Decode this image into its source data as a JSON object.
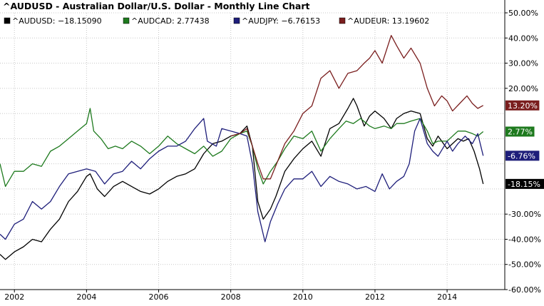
{
  "chart_data": {
    "type": "line",
    "title": "^AUDUSD - Australian Dollar/U.S. Dollar - Monthly Line Chart",
    "xlabel": "",
    "ylabel": "",
    "xlim": [
      2001.6,
      2015.6
    ],
    "ylim": [
      -60,
      50
    ],
    "x_ticks": [
      {
        "x": 2002,
        "label": "2002"
      },
      {
        "x": 2004,
        "label": "2004"
      },
      {
        "x": 2006,
        "label": "2006"
      },
      {
        "x": 2008,
        "label": "2008"
      },
      {
        "x": 2010,
        "label": "2010"
      },
      {
        "x": 2012,
        "label": "2012"
      },
      {
        "x": 2014,
        "label": "2014"
      }
    ],
    "y_ticks": [
      {
        "y": 50,
        "label": "50.00%"
      },
      {
        "y": 40,
        "label": "40.00%"
      },
      {
        "y": 30,
        "label": "30.00%"
      },
      {
        "y": 20,
        "label": "20.00%"
      },
      {
        "y": -30,
        "label": "-30.00%"
      },
      {
        "y": -40,
        "label": "-40.00%"
      },
      {
        "y": -50,
        "label": "-50.00%"
      },
      {
        "y": -60,
        "label": "-60.00%"
      }
    ],
    "grid": true,
    "legend_position": "top",
    "series": [
      {
        "name": "^AUDUSD",
        "legend_label": "^AUDUSD: −18.15090",
        "end_label": "-18.15%",
        "color": "#000000",
        "points": [
          [
            2001.6,
            -46
          ],
          [
            2001.75,
            -48
          ],
          [
            2002.0,
            -45
          ],
          [
            2002.25,
            -43
          ],
          [
            2002.5,
            -40
          ],
          [
            2002.75,
            -41
          ],
          [
            2003.0,
            -36
          ],
          [
            2003.25,
            -32
          ],
          [
            2003.5,
            -25
          ],
          [
            2003.75,
            -21
          ],
          [
            2004.0,
            -15
          ],
          [
            2004.1,
            -14
          ],
          [
            2004.3,
            -20
          ],
          [
            2004.5,
            -23
          ],
          [
            2004.75,
            -19
          ],
          [
            2005.0,
            -17
          ],
          [
            2005.25,
            -19
          ],
          [
            2005.5,
            -21
          ],
          [
            2005.75,
            -22
          ],
          [
            2006.0,
            -20
          ],
          [
            2006.25,
            -17
          ],
          [
            2006.5,
            -15
          ],
          [
            2006.75,
            -14
          ],
          [
            2007.0,
            -12
          ],
          [
            2007.25,
            -6
          ],
          [
            2007.5,
            -2
          ],
          [
            2007.75,
            -1
          ],
          [
            2008.0,
            1
          ],
          [
            2008.25,
            2
          ],
          [
            2008.45,
            5
          ],
          [
            2008.6,
            -3
          ],
          [
            2008.75,
            -25
          ],
          [
            2008.9,
            -32
          ],
          [
            2009.1,
            -28
          ],
          [
            2009.25,
            -23
          ],
          [
            2009.5,
            -13
          ],
          [
            2009.75,
            -8
          ],
          [
            2010.0,
            -4
          ],
          [
            2010.25,
            -1
          ],
          [
            2010.5,
            -7
          ],
          [
            2010.75,
            4
          ],
          [
            2011.0,
            6
          ],
          [
            2011.25,
            12
          ],
          [
            2011.4,
            16
          ],
          [
            2011.5,
            13
          ],
          [
            2011.7,
            5
          ],
          [
            2011.85,
            9
          ],
          [
            2012.0,
            11
          ],
          [
            2012.25,
            8
          ],
          [
            2012.45,
            4
          ],
          [
            2012.6,
            8
          ],
          [
            2012.8,
            10
          ],
          [
            2013.0,
            11
          ],
          [
            2013.25,
            10
          ],
          [
            2013.45,
            0
          ],
          [
            2013.6,
            -3
          ],
          [
            2013.75,
            1
          ],
          [
            2014.0,
            -4
          ],
          [
            2014.15,
            -2
          ],
          [
            2014.3,
            0
          ],
          [
            2014.45,
            -1
          ],
          [
            2014.6,
            0
          ],
          [
            2014.75,
            -5
          ],
          [
            2014.9,
            -12
          ],
          [
            2015.0,
            -18
          ]
        ]
      },
      {
        "name": "^AUDCAD",
        "legend_label": "^AUDCAD: 2.77438",
        "end_label": "2.77%",
        "color": "#1e7a1e",
        "points": [
          [
            2001.6,
            -10
          ],
          [
            2001.75,
            -19
          ],
          [
            2002.0,
            -13
          ],
          [
            2002.25,
            -13
          ],
          [
            2002.5,
            -10
          ],
          [
            2002.75,
            -11
          ],
          [
            2003.0,
            -5
          ],
          [
            2003.25,
            -3
          ],
          [
            2003.5,
            0
          ],
          [
            2003.75,
            3
          ],
          [
            2004.0,
            6
          ],
          [
            2004.1,
            12
          ],
          [
            2004.2,
            3
          ],
          [
            2004.4,
            0
          ],
          [
            2004.6,
            -4
          ],
          [
            2004.8,
            -3
          ],
          [
            2005.0,
            -4
          ],
          [
            2005.25,
            -1
          ],
          [
            2005.5,
            -3
          ],
          [
            2005.75,
            -6
          ],
          [
            2006.0,
            -3
          ],
          [
            2006.25,
            1
          ],
          [
            2006.5,
            -2
          ],
          [
            2006.75,
            -4
          ],
          [
            2007.0,
            -6
          ],
          [
            2007.25,
            -3
          ],
          [
            2007.5,
            -7
          ],
          [
            2007.75,
            -5
          ],
          [
            2008.0,
            0
          ],
          [
            2008.25,
            2
          ],
          [
            2008.45,
            3
          ],
          [
            2008.6,
            -3
          ],
          [
            2008.75,
            -12
          ],
          [
            2008.9,
            -18
          ],
          [
            2009.1,
            -13
          ],
          [
            2009.3,
            -9
          ],
          [
            2009.5,
            -4
          ],
          [
            2009.75,
            1
          ],
          [
            2010.0,
            0
          ],
          [
            2010.25,
            3
          ],
          [
            2010.5,
            -5
          ],
          [
            2010.75,
            0
          ],
          [
            2011.0,
            4
          ],
          [
            2011.2,
            7
          ],
          [
            2011.4,
            6
          ],
          [
            2011.6,
            8
          ],
          [
            2011.85,
            5
          ],
          [
            2012.0,
            4
          ],
          [
            2012.25,
            5
          ],
          [
            2012.45,
            4
          ],
          [
            2012.6,
            6
          ],
          [
            2012.8,
            6
          ],
          [
            2013.0,
            7
          ],
          [
            2013.25,
            8
          ],
          [
            2013.45,
            3
          ],
          [
            2013.6,
            -2
          ],
          [
            2013.75,
            -1
          ],
          [
            2014.0,
            -1
          ],
          [
            2014.15,
            1
          ],
          [
            2014.3,
            3
          ],
          [
            2014.5,
            3
          ],
          [
            2014.7,
            2
          ],
          [
            2014.85,
            1
          ],
          [
            2015.0,
            2.8
          ]
        ]
      },
      {
        "name": "^AUDJPY",
        "legend_label": "^AUDJPY: −6.76153",
        "end_label": "-6.76%",
        "color": "#1e1e7a",
        "points": [
          [
            2001.6,
            -38
          ],
          [
            2001.75,
            -40
          ],
          [
            2002.0,
            -34
          ],
          [
            2002.25,
            -32
          ],
          [
            2002.5,
            -25
          ],
          [
            2002.75,
            -28
          ],
          [
            2003.0,
            -25
          ],
          [
            2003.25,
            -19
          ],
          [
            2003.5,
            -14
          ],
          [
            2003.75,
            -13
          ],
          [
            2004.0,
            -12
          ],
          [
            2004.25,
            -13
          ],
          [
            2004.5,
            -18
          ],
          [
            2004.75,
            -14
          ],
          [
            2005.0,
            -13
          ],
          [
            2005.25,
            -9
          ],
          [
            2005.5,
            -12
          ],
          [
            2005.75,
            -8
          ],
          [
            2006.0,
            -5
          ],
          [
            2006.25,
            -3
          ],
          [
            2006.5,
            -3
          ],
          [
            2006.75,
            -1
          ],
          [
            2007.0,
            4
          ],
          [
            2007.25,
            8
          ],
          [
            2007.35,
            -1
          ],
          [
            2007.6,
            -3
          ],
          [
            2007.75,
            4
          ],
          [
            2008.0,
            3
          ],
          [
            2008.25,
            2
          ],
          [
            2008.45,
            1
          ],
          [
            2008.6,
            -10
          ],
          [
            2008.75,
            -29
          ],
          [
            2008.95,
            -41
          ],
          [
            2009.1,
            -33
          ],
          [
            2009.3,
            -26
          ],
          [
            2009.5,
            -20
          ],
          [
            2009.75,
            -16
          ],
          [
            2010.0,
            -16
          ],
          [
            2010.25,
            -13
          ],
          [
            2010.5,
            -19
          ],
          [
            2010.75,
            -15
          ],
          [
            2011.0,
            -17
          ],
          [
            2011.25,
            -18
          ],
          [
            2011.5,
            -20
          ],
          [
            2011.75,
            -19
          ],
          [
            2012.0,
            -21
          ],
          [
            2012.2,
            -14
          ],
          [
            2012.4,
            -20
          ],
          [
            2012.6,
            -17
          ],
          [
            2012.8,
            -15
          ],
          [
            2012.95,
            -10
          ],
          [
            2013.1,
            3
          ],
          [
            2013.25,
            8
          ],
          [
            2013.45,
            -2
          ],
          [
            2013.6,
            -5
          ],
          [
            2013.75,
            -7
          ],
          [
            2014.0,
            -1
          ],
          [
            2014.15,
            -5
          ],
          [
            2014.3,
            -2
          ],
          [
            2014.5,
            1
          ],
          [
            2014.7,
            -2
          ],
          [
            2014.85,
            2
          ],
          [
            2015.0,
            -6.8
          ]
        ]
      },
      {
        "name": "^AUDEUR",
        "legend_label": "^AUDEUR: 13.19602",
        "end_label": "13.20%",
        "color": "#7a1e1e",
        "points": [
          [
            2008.0,
            1
          ],
          [
            2008.25,
            2
          ],
          [
            2008.45,
            4
          ],
          [
            2008.6,
            -3
          ],
          [
            2008.75,
            -10
          ],
          [
            2008.9,
            -16
          ],
          [
            2009.1,
            -16
          ],
          [
            2009.3,
            -9
          ],
          [
            2009.5,
            -2
          ],
          [
            2009.75,
            3
          ],
          [
            2010.0,
            10
          ],
          [
            2010.25,
            13
          ],
          [
            2010.5,
            24
          ],
          [
            2010.75,
            27
          ],
          [
            2011.0,
            20
          ],
          [
            2011.25,
            26
          ],
          [
            2011.5,
            27
          ],
          [
            2011.7,
            30
          ],
          [
            2011.85,
            32
          ],
          [
            2012.0,
            35
          ],
          [
            2012.2,
            30
          ],
          [
            2012.45,
            41
          ],
          [
            2012.6,
            37
          ],
          [
            2012.8,
            32
          ],
          [
            2013.0,
            36
          ],
          [
            2013.25,
            30
          ],
          [
            2013.45,
            20
          ],
          [
            2013.65,
            13
          ],
          [
            2013.85,
            17
          ],
          [
            2014.0,
            15
          ],
          [
            2014.15,
            11
          ],
          [
            2014.35,
            14
          ],
          [
            2014.55,
            17
          ],
          [
            2014.7,
            14
          ],
          [
            2014.85,
            12
          ],
          [
            2015.0,
            13.2
          ]
        ]
      }
    ]
  }
}
